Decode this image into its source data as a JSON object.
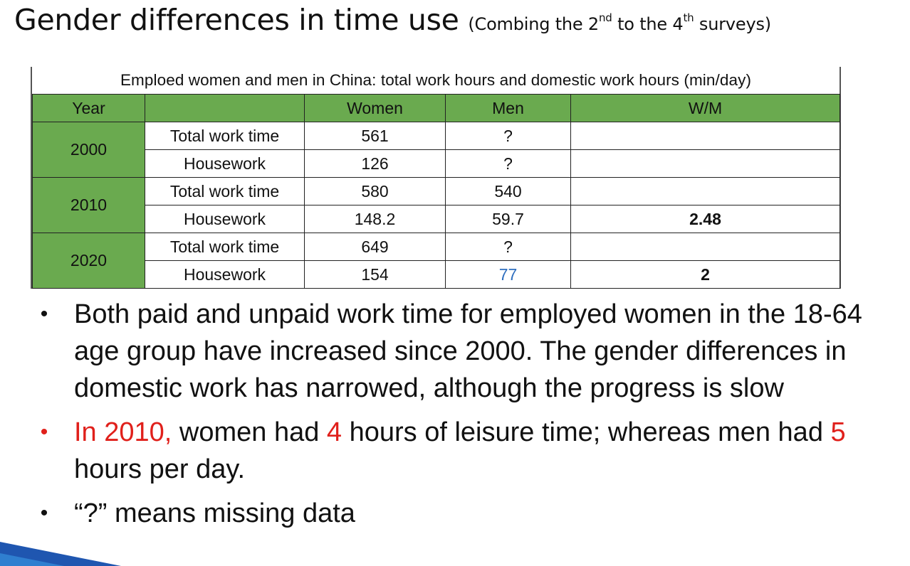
{
  "title": {
    "main": "Gender differences in time use",
    "sub_prefix": "(Combing the 2",
    "sup1": "nd",
    "sub_middle": " to the 4",
    "sup2": "th",
    "sub_suffix": " surveys)"
  },
  "table": {
    "caption": "Emploed women and men in China: total work hours and domestic work hours (min/day)",
    "headers": [
      "Year",
      "",
      "Women",
      "Men",
      "W/M"
    ],
    "rows": [
      {
        "year": "2000",
        "label": "Total work time",
        "women": "561",
        "men": "?",
        "wm": ""
      },
      {
        "year": "",
        "label": "Housework",
        "women": "126",
        "men": "?",
        "wm": ""
      },
      {
        "year": "2010",
        "label": "Total work time",
        "women": "580",
        "men": "540",
        "wm": ""
      },
      {
        "year": "",
        "label": "Housework",
        "women": "148.2",
        "men": "59.7",
        "wm": "2.48"
      },
      {
        "year": "2020",
        "label": "Total work time",
        "women": "649",
        "men": "?",
        "wm": ""
      },
      {
        "year": "",
        "label": "Housework",
        "women": "154",
        "men": "77",
        "wm": "2"
      }
    ],
    "colors": {
      "header_green": "#6aaa4f",
      "highlight_blue": "#2f6fbf"
    }
  },
  "bullets": {
    "marker": "•",
    "b1": "Both paid and unpaid work time for employed women in the 18-64 age group have increased since 2000. The gender differences in domestic work has narrowed, although the progress is slow",
    "b2_part1": "In 2010,",
    "b2_part2": " women had ",
    "b2_part3": "4",
    "b2_part4": " hours of leisure time; whereas men had ",
    "b2_part5": "5",
    "b2_part6": " hours per day.",
    "b3": "“?” means missing data",
    "accent_red": "#e0201b"
  }
}
